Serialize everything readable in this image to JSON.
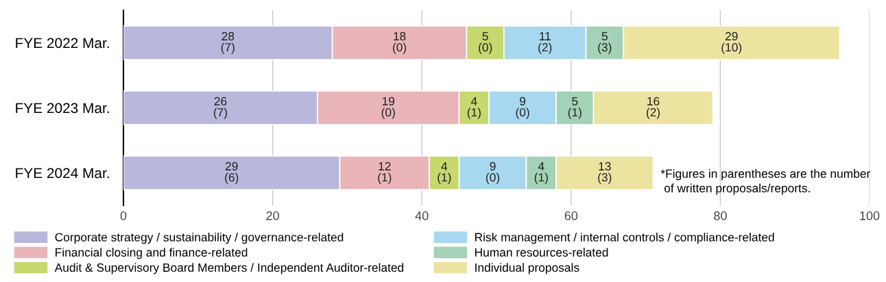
{
  "chart_data": {
    "type": "bar",
    "orientation": "horizontal",
    "stacked": true,
    "categories": [
      "FYE 2022 Mar.",
      "FYE 2023 Mar.",
      "FYE 2024 Mar."
    ],
    "series": [
      {
        "name": "Corporate strategy / sustainability / governance-related",
        "color": "#b9b8dc",
        "values": [
          28,
          26,
          29
        ],
        "value_labels": [
          "28\n(7)",
          "26\n(7)",
          "29\n(6)"
        ]
      },
      {
        "name": "Financial closing and finance-related",
        "color": "#e9b5b9",
        "values": [
          18,
          19,
          12
        ],
        "value_labels": [
          "18\n(0)",
          "19\n(0)",
          "12\n(1)"
        ]
      },
      {
        "name": "Audit & Supervisory Board Members / Independent Auditor-related",
        "color": "#c6d86e",
        "values": [
          5,
          4,
          4
        ],
        "value_labels": [
          "5\n(0)",
          "4\n(1)",
          "4\n(1)"
        ]
      },
      {
        "name": "Risk management / internal controls / compliance-related",
        "color": "#a8d8ef",
        "values": [
          11,
          9,
          9
        ],
        "value_labels": [
          "11\n(2)",
          "9\n(0)",
          "9\n(0)"
        ]
      },
      {
        "name": "Human resources-related",
        "color": "#a3d2b6",
        "values": [
          5,
          5,
          4
        ],
        "value_labels": [
          "5\n(3)",
          "5\n(1)",
          "4\n(1)"
        ]
      },
      {
        "name": "Individual proposals",
        "color": "#ede3a1",
        "values": [
          29,
          16,
          13
        ],
        "value_labels": [
          "29\n(10)",
          "16\n(2)",
          "13\n(3)"
        ]
      }
    ],
    "xlim": [
      0,
      100
    ],
    "xticks": [
      0,
      20,
      40,
      60,
      80,
      100
    ],
    "grid": "x",
    "legend": "bottom",
    "annotations": [
      "*Figures in parentheses are the number\n of written proposals/reports."
    ]
  }
}
